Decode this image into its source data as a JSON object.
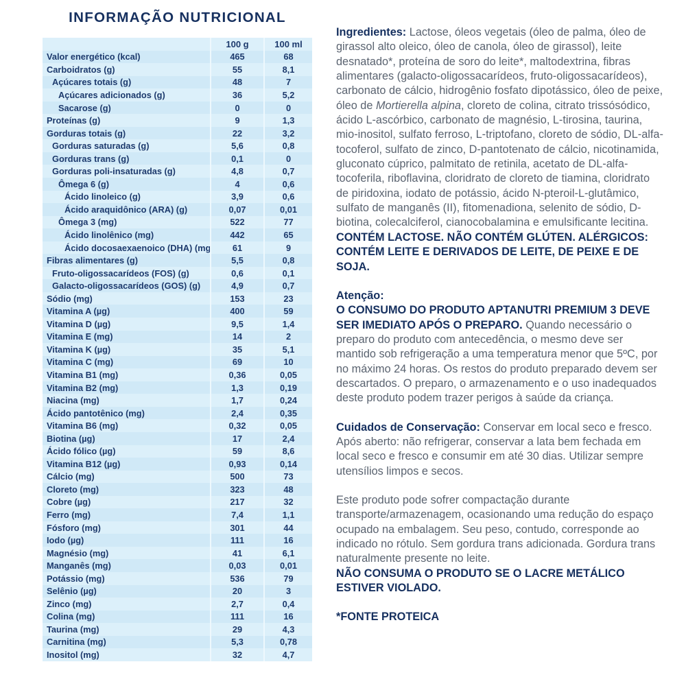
{
  "title": "INFORMAÇÃO NUTRICIONAL",
  "table": {
    "col_headers": [
      "100 g",
      "100 ml"
    ],
    "rows": [
      {
        "label": "Valor energético (kcal)",
        "indent": 0,
        "g": "465",
        "ml": "68"
      },
      {
        "label": "Carboidratos (g)",
        "indent": 0,
        "g": "55",
        "ml": "8,1"
      },
      {
        "label": "Açúcares totais (g)",
        "indent": 1,
        "g": "48",
        "ml": "7"
      },
      {
        "label": "Açúcares adicionados (g)",
        "indent": 2,
        "g": "36",
        "ml": "5,2"
      },
      {
        "label": "Sacarose (g)",
        "indent": 2,
        "g": "0",
        "ml": "0"
      },
      {
        "label": "Proteínas (g)",
        "indent": 0,
        "g": "9",
        "ml": "1,3"
      },
      {
        "label": "Gorduras totais (g)",
        "indent": 0,
        "g": "22",
        "ml": "3,2"
      },
      {
        "label": "Gorduras saturadas (g)",
        "indent": 1,
        "g": "5,6",
        "ml": "0,8"
      },
      {
        "label": "Gorduras trans (g)",
        "indent": 1,
        "g": "0,1",
        "ml": "0"
      },
      {
        "label": "Gorduras poli-insaturadas (g)",
        "indent": 1,
        "g": "4,8",
        "ml": "0,7"
      },
      {
        "label": "Ômega 6 (g)",
        "indent": 2,
        "g": "4",
        "ml": "0,6"
      },
      {
        "label": "Ácido linoleico (g)",
        "indent": 3,
        "g": "3,9",
        "ml": "0,6"
      },
      {
        "label": "Ácido araquidônico (ARA) (g)",
        "indent": 3,
        "g": "0,07",
        "ml": "0,01"
      },
      {
        "label": "Ômega 3 (mg)",
        "indent": 2,
        "g": "522",
        "ml": "77"
      },
      {
        "label": "Ácido linolênico (mg)",
        "indent": 3,
        "g": "442",
        "ml": "65"
      },
      {
        "label": "Ácido docosaexaenoico (DHA) (mg)",
        "indent": 3,
        "g": "61",
        "ml": "9"
      },
      {
        "label": "Fibras alimentares (g)",
        "indent": 0,
        "g": "5,5",
        "ml": "0,8"
      },
      {
        "label": "Fruto-oligossacarídeos (FOS) (g)",
        "indent": 1,
        "g": "0,6",
        "ml": "0,1"
      },
      {
        "label": "Galacto-oligossacarídeos (GOS) (g)",
        "indent": 1,
        "g": "4,9",
        "ml": "0,7"
      },
      {
        "label": "Sódio (mg)",
        "indent": 0,
        "g": "153",
        "ml": "23"
      },
      {
        "label": "Vitamina A (µg)",
        "indent": 0,
        "g": "400",
        "ml": "59"
      },
      {
        "label": "Vitamina D (µg)",
        "indent": 0,
        "g": "9,5",
        "ml": "1,4"
      },
      {
        "label": "Vitamina E (mg)",
        "indent": 0,
        "g": "14",
        "ml": "2"
      },
      {
        "label": "Vitamina K (µg)",
        "indent": 0,
        "g": "35",
        "ml": "5,1"
      },
      {
        "label": "Vitamina C (mg)",
        "indent": 0,
        "g": "69",
        "ml": "10"
      },
      {
        "label": "Vitamina B1 (mg)",
        "indent": 0,
        "g": "0,36",
        "ml": "0,05"
      },
      {
        "label": "Vitamina B2 (mg)",
        "indent": 0,
        "g": "1,3",
        "ml": "0,19"
      },
      {
        "label": "Niacina (mg)",
        "indent": 0,
        "g": "1,7",
        "ml": "0,24"
      },
      {
        "label": "Ácido pantotênico (mg)",
        "indent": 0,
        "g": "2,4",
        "ml": "0,35"
      },
      {
        "label": "Vitamina B6 (mg)",
        "indent": 0,
        "g": "0,32",
        "ml": "0,05"
      },
      {
        "label": "Biotina (µg)",
        "indent": 0,
        "g": "17",
        "ml": "2,4"
      },
      {
        "label": "Ácido fólico (µg)",
        "indent": 0,
        "g": "59",
        "ml": "8,6"
      },
      {
        "label": "Vitamina B12 (µg)",
        "indent": 0,
        "g": "0,93",
        "ml": "0,14"
      },
      {
        "label": "Cálcio (mg)",
        "indent": 0,
        "g": "500",
        "ml": "73"
      },
      {
        "label": "Cloreto (mg)",
        "indent": 0,
        "g": "323",
        "ml": "48"
      },
      {
        "label": "Cobre (µg)",
        "indent": 0,
        "g": "217",
        "ml": "32"
      },
      {
        "label": "Ferro (mg)",
        "indent": 0,
        "g": "7,4",
        "ml": "1,1"
      },
      {
        "label": "Fósforo (mg)",
        "indent": 0,
        "g": "301",
        "ml": "44"
      },
      {
        "label": "Iodo (µg)",
        "indent": 0,
        "g": "111",
        "ml": "16"
      },
      {
        "label": "Magnésio (mg)",
        "indent": 0,
        "g": "41",
        "ml": "6,1"
      },
      {
        "label": "Manganês (mg)",
        "indent": 0,
        "g": "0,03",
        "ml": "0,01"
      },
      {
        "label": "Potássio (mg)",
        "indent": 0,
        "g": "536",
        "ml": "79"
      },
      {
        "label": "Selênio (µg)",
        "indent": 0,
        "g": "20",
        "ml": "3"
      },
      {
        "label": "Zinco (mg)",
        "indent": 0,
        "g": "2,7",
        "ml": "0,4"
      },
      {
        "label": "Colina (mg)",
        "indent": 0,
        "g": "111",
        "ml": "16"
      },
      {
        "label": "Taurina (mg)",
        "indent": 0,
        "g": "29",
        "ml": "4,3"
      },
      {
        "label": "Carnitina (mg)",
        "indent": 0,
        "g": "5,3",
        "ml": "0,78"
      },
      {
        "label": "Inositol (mg)",
        "indent": 0,
        "g": "32",
        "ml": "4,7"
      }
    ]
  },
  "colors": {
    "navy": "#16305f",
    "table_text": "#1d3a6d",
    "body_gray": "#5a6370",
    "stripe_light": "#dcf0fa",
    "stripe_dark": "#d0e9f7"
  },
  "paragraphs": [
    {
      "name": "ingredients-paragraph",
      "segments": [
        {
          "t": "Ingredientes: ",
          "s": "b"
        },
        {
          "t": "Lactose, óleos vegetais (óleo de palma, óleo de girassol alto oleico, óleo de canola, óleo de girassol), leite desnatado*, proteína de soro do leite*, maltodextrina, fibras alimentares (galacto-oligossacarídeos, fruto-oligossacarídeos), carbonato de cálcio, hidrogênio fosfato dipotássico, óleo de peixe, óleo de ",
          "s": "n"
        },
        {
          "t": "Mortierella alpina",
          "s": "i"
        },
        {
          "t": ", cloreto de colina, citrato trissósódico, ácido L-ascórbico, carbonato de magnésio, L-tirosina, taurina, mio-inositol, sulfato ferroso, L-triptofano, cloreto de sódio, DL-alfa-tocoferol, sulfato de zinco, D-pantotenato de cálcio, nicotinamida, gluconato cúprico, palmitato de retinila, acetato de DL-alfa-tocoferila, riboflavina, cloridrato de cloreto de tiamina, cloridrato de piridoxina, iodato de potássio, ácido N-pteroil-L-glutâmico, sulfato de manganês (II), fitomenadiona, selenito de sódio, D-biotina, colecalciferol, cianocobalamina e emulsificante lecitina.",
          "s": "n"
        },
        {
          "t": "\nCONTÉM LACTOSE. NÃO CONTÉM GLÚTEN. ALÉRGICOS: CONTÉM LEITE E DERIVADOS DE LEITE, DE PEIXE E DE SOJA.",
          "s": "b"
        }
      ]
    },
    {
      "name": "attention-paragraph",
      "segments": [
        {
          "t": "Atenção:\n",
          "s": "b"
        },
        {
          "t": "O CONSUMO DO PRODUTO APTANUTRI PREMIUM 3 DEVE SER IMEDIATO APÓS O PREPARO. ",
          "s": "b"
        },
        {
          "t": "Quando necessário o preparo do produto com antecedência, o mesmo deve ser mantido sob refrigeração a uma temperatura menor que 5ºC, por no máximo 24 horas. Os restos do produto preparado devem ser descartados. O preparo, o armazenamento e o uso inadequados deste produto podem trazer perigos à saúde da criança.",
          "s": "n"
        }
      ]
    },
    {
      "name": "conservation-paragraph",
      "segments": [
        {
          "t": "Cuidados de Conservação: ",
          "s": "b"
        },
        {
          "t": "Conservar em local seco e fresco. Após aberto: não refrigerar, conservar a lata bem fechada em local seco e fresco e consumir em até 30 dias. Utilizar sempre utensílios limpos e secos.",
          "s": "n"
        }
      ]
    },
    {
      "name": "compaction-paragraph",
      "segments": [
        {
          "t": "Este produto pode sofrer compactação durante transporte/armazenagem, ocasionando uma redução do espaço ocupado na embalagem. Seu peso, contudo, corresponde ao indicado no rótulo. Sem gordura trans adicionada. Gordura trans naturalmente presente no leite.",
          "s": "n"
        },
        {
          "t": "\nNÃO CONSUMA O PRODUTO SE O LACRE METÁLICO ESTIVER VIOLADO.",
          "s": "b"
        }
      ]
    },
    {
      "name": "protein-source-note",
      "segments": [
        {
          "t": "*FONTE PROTEICA",
          "s": "b"
        }
      ]
    }
  ]
}
